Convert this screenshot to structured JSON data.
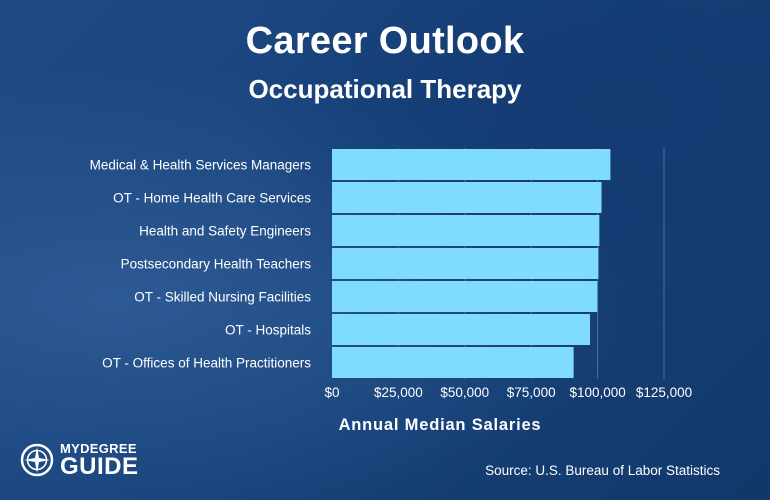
{
  "header": {
    "title": "Career Outlook",
    "subtitle": "Occupational Therapy"
  },
  "chart_data": {
    "type": "bar",
    "orientation": "horizontal",
    "categories": [
      "Medical & Health Services Managers",
      "OT - Home Health Care Services",
      "Health and Safety Engineers",
      "Postsecondary Health Teachers",
      "OT - Skilled Nursing Facilities",
      "OT - Hospitals",
      "OT - Offices of Health Practitioners"
    ],
    "values": [
      104830,
      101480,
      100660,
      100300,
      99880,
      97150,
      90960
    ],
    "xlabel": "Annual Median Salaries",
    "xlim": [
      0,
      125000
    ],
    "xticks": [
      "$0",
      "$25,000",
      "$50,000",
      "$75,000",
      "$100,000",
      "$125,000"
    ],
    "bar_color": "#7fdcff",
    "grid": true
  },
  "footer": {
    "source": "Source: U.S. Bureau of Labor Statistics",
    "logo_top": "MYDEGREE",
    "logo_bottom": "GUIDE"
  }
}
